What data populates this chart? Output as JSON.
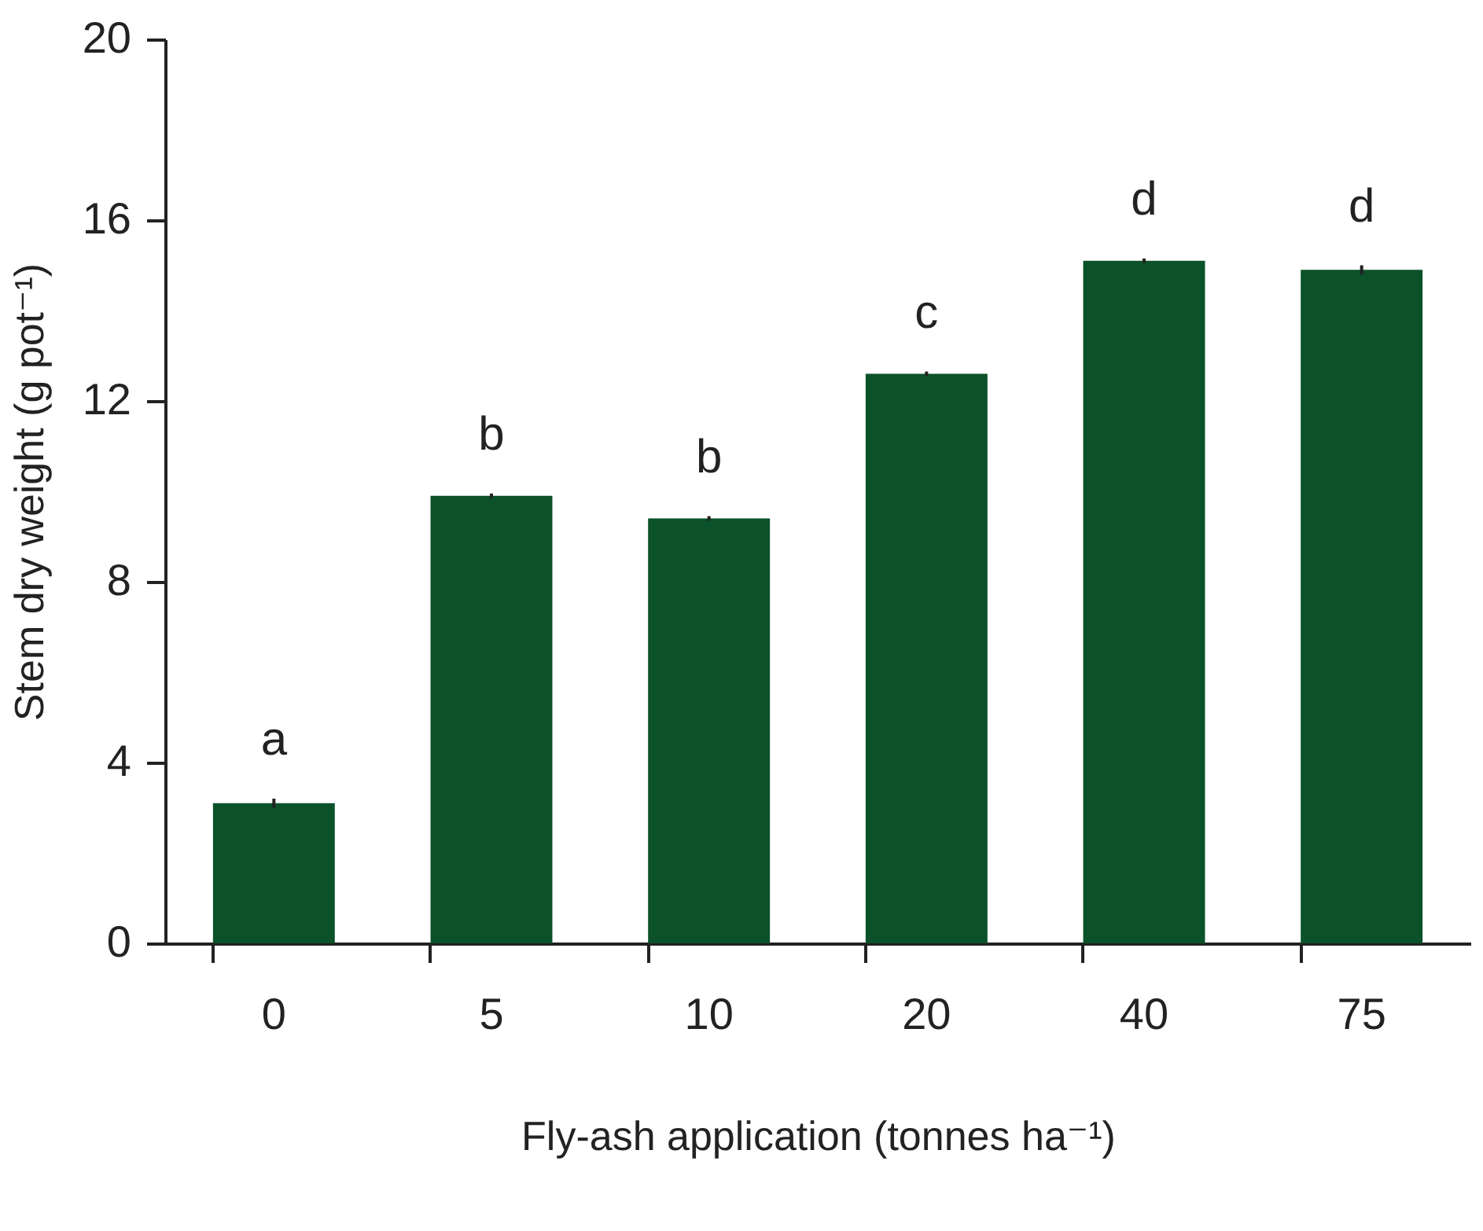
{
  "chart_data": {
    "type": "bar",
    "xlabel": "Fly-ash application  (tonnes  ha⁻¹)",
    "ylabel": "Stem dry weight  (g pot⁻¹)",
    "categories": [
      "0",
      "5",
      "10",
      "20",
      "40",
      "75"
    ],
    "values": [
      3.1,
      9.9,
      9.4,
      12.6,
      15.1,
      14.9
    ],
    "errors": [
      0.1,
      0.05,
      0.05,
      0.05,
      0.05,
      0.1
    ],
    "color": "#0b5129",
    "ylim": [
      0,
      20
    ],
    "yticks": [
      0,
      4,
      8,
      12,
      16,
      20
    ],
    "grid": false,
    "annotations": [
      "a",
      "b",
      "b",
      "c",
      "d",
      "d"
    ]
  }
}
